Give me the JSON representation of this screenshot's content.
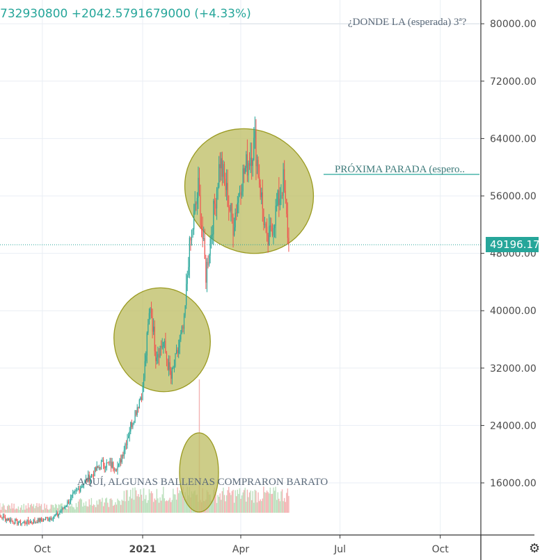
{
  "header": {
    "price_change_text": "732930800  +2042.5791679000 (+4.33%)"
  },
  "last_price_label": "49196.17",
  "annotations": {
    "top_note": "¿DONDE LA (esperada) 3ª?",
    "next_stop_note": "PRÓXIMA PARADA (espero..",
    "whales_note": "AQUÍ, ALGUNAS BALLENAS COMPRARON BARATO"
  },
  "colors": {
    "up": "#26a69a",
    "down": "#ef5350",
    "ellipse_fill": "#bfbf66",
    "ellipse_stroke": "#9a9a20",
    "grid": "#e9eef4",
    "axis_text": "#4a4a4a"
  },
  "chart_data": {
    "type": "candlestick",
    "title": "",
    "x_ticks": [
      {
        "label": "Oct",
        "bold": false
      },
      {
        "label": "2021",
        "bold": true
      },
      {
        "label": "Apr",
        "bold": false
      },
      {
        "label": "Jul",
        "bold": false
      },
      {
        "label": "Oct",
        "bold": false
      }
    ],
    "y_ticks": [
      16000,
      24000,
      32000,
      40000,
      48000,
      56000,
      64000,
      72000,
      80000
    ],
    "y_tick_labels": [
      "16000.00",
      "24000.00",
      "32000.00",
      "40000.00",
      "48000.00",
      "56000.00",
      "64000.00",
      "72000.00",
      "80000.00"
    ],
    "ylim": [
      7000,
      82500
    ],
    "last_price": 49196.17,
    "horizontal_lines": [
      {
        "name": "next-stop-line",
        "value": 59000
      },
      {
        "name": "top-note-line",
        "value": 80000
      }
    ],
    "series": [
      {
        "name": "",
        "keypoints": [
          {
            "date": "2020-08-15",
            "close": 11700
          },
          {
            "date": "2020-09-10",
            "close": 10400
          },
          {
            "date": "2020-10-01",
            "close": 10800
          },
          {
            "date": "2020-10-15",
            "close": 11500
          },
          {
            "date": "2020-11-05",
            "close": 15500
          },
          {
            "date": "2020-11-25",
            "close": 18700
          },
          {
            "date": "2020-12-10",
            "close": 18300
          },
          {
            "date": "2020-12-20",
            "close": 23500
          },
          {
            "date": "2021-01-01",
            "close": 29000
          },
          {
            "date": "2021-01-08",
            "close": 41000
          },
          {
            "date": "2021-01-13",
            "close": 34000
          },
          {
            "date": "2021-01-20",
            "close": 35500
          },
          {
            "date": "2021-01-27",
            "close": 30500
          },
          {
            "date": "2021-02-08",
            "close": 38000
          },
          {
            "date": "2021-02-12",
            "close": 47500
          },
          {
            "date": "2021-02-21",
            "close": 57000
          },
          {
            "date": "2021-02-28",
            "close": 45000
          },
          {
            "date": "2021-03-13",
            "close": 61000
          },
          {
            "date": "2021-03-25",
            "close": 52000
          },
          {
            "date": "2021-04-01",
            "close": 58000
          },
          {
            "date": "2021-04-14",
            "close": 63500
          },
          {
            "date": "2021-04-25",
            "close": 49000
          },
          {
            "date": "2021-05-10",
            "close": 58000
          },
          {
            "date": "2021-05-15",
            "close": 49196
          }
        ]
      }
    ],
    "volume_spike_date": "2021-02-22"
  }
}
